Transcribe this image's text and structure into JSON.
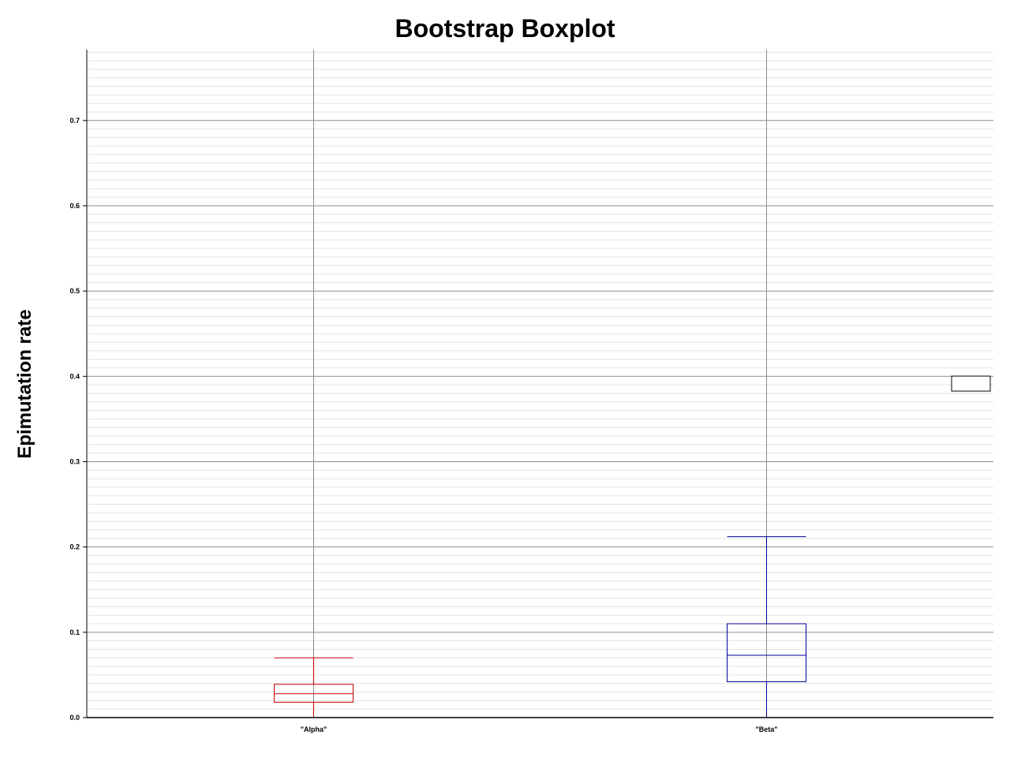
{
  "chart_data": {
    "type": "box",
    "title": "Bootstrap Boxplot",
    "xlabel": "",
    "ylabel": "Epimutation rate",
    "ylim": [
      0.0,
      0.783
    ],
    "y_ticks": [
      "0.0",
      "0.1",
      "0.2",
      "0.3",
      "0.4",
      "0.5",
      "0.6",
      "0.7"
    ],
    "y_minor_step": 0.01,
    "grid": true,
    "legend": "right, empty",
    "categories": [
      "\"Alpha\"",
      "\"Beta\""
    ],
    "series": [
      {
        "color": "#cc0000",
        "min": 0.0,
        "q1": 0.018,
        "median": 0.028,
        "q3": 0.039,
        "max": 0.07
      },
      {
        "color": "#000099",
        "min": 0.0,
        "q1": 0.042,
        "median": 0.073,
        "q3": 0.11,
        "max": 0.212
      }
    ]
  }
}
